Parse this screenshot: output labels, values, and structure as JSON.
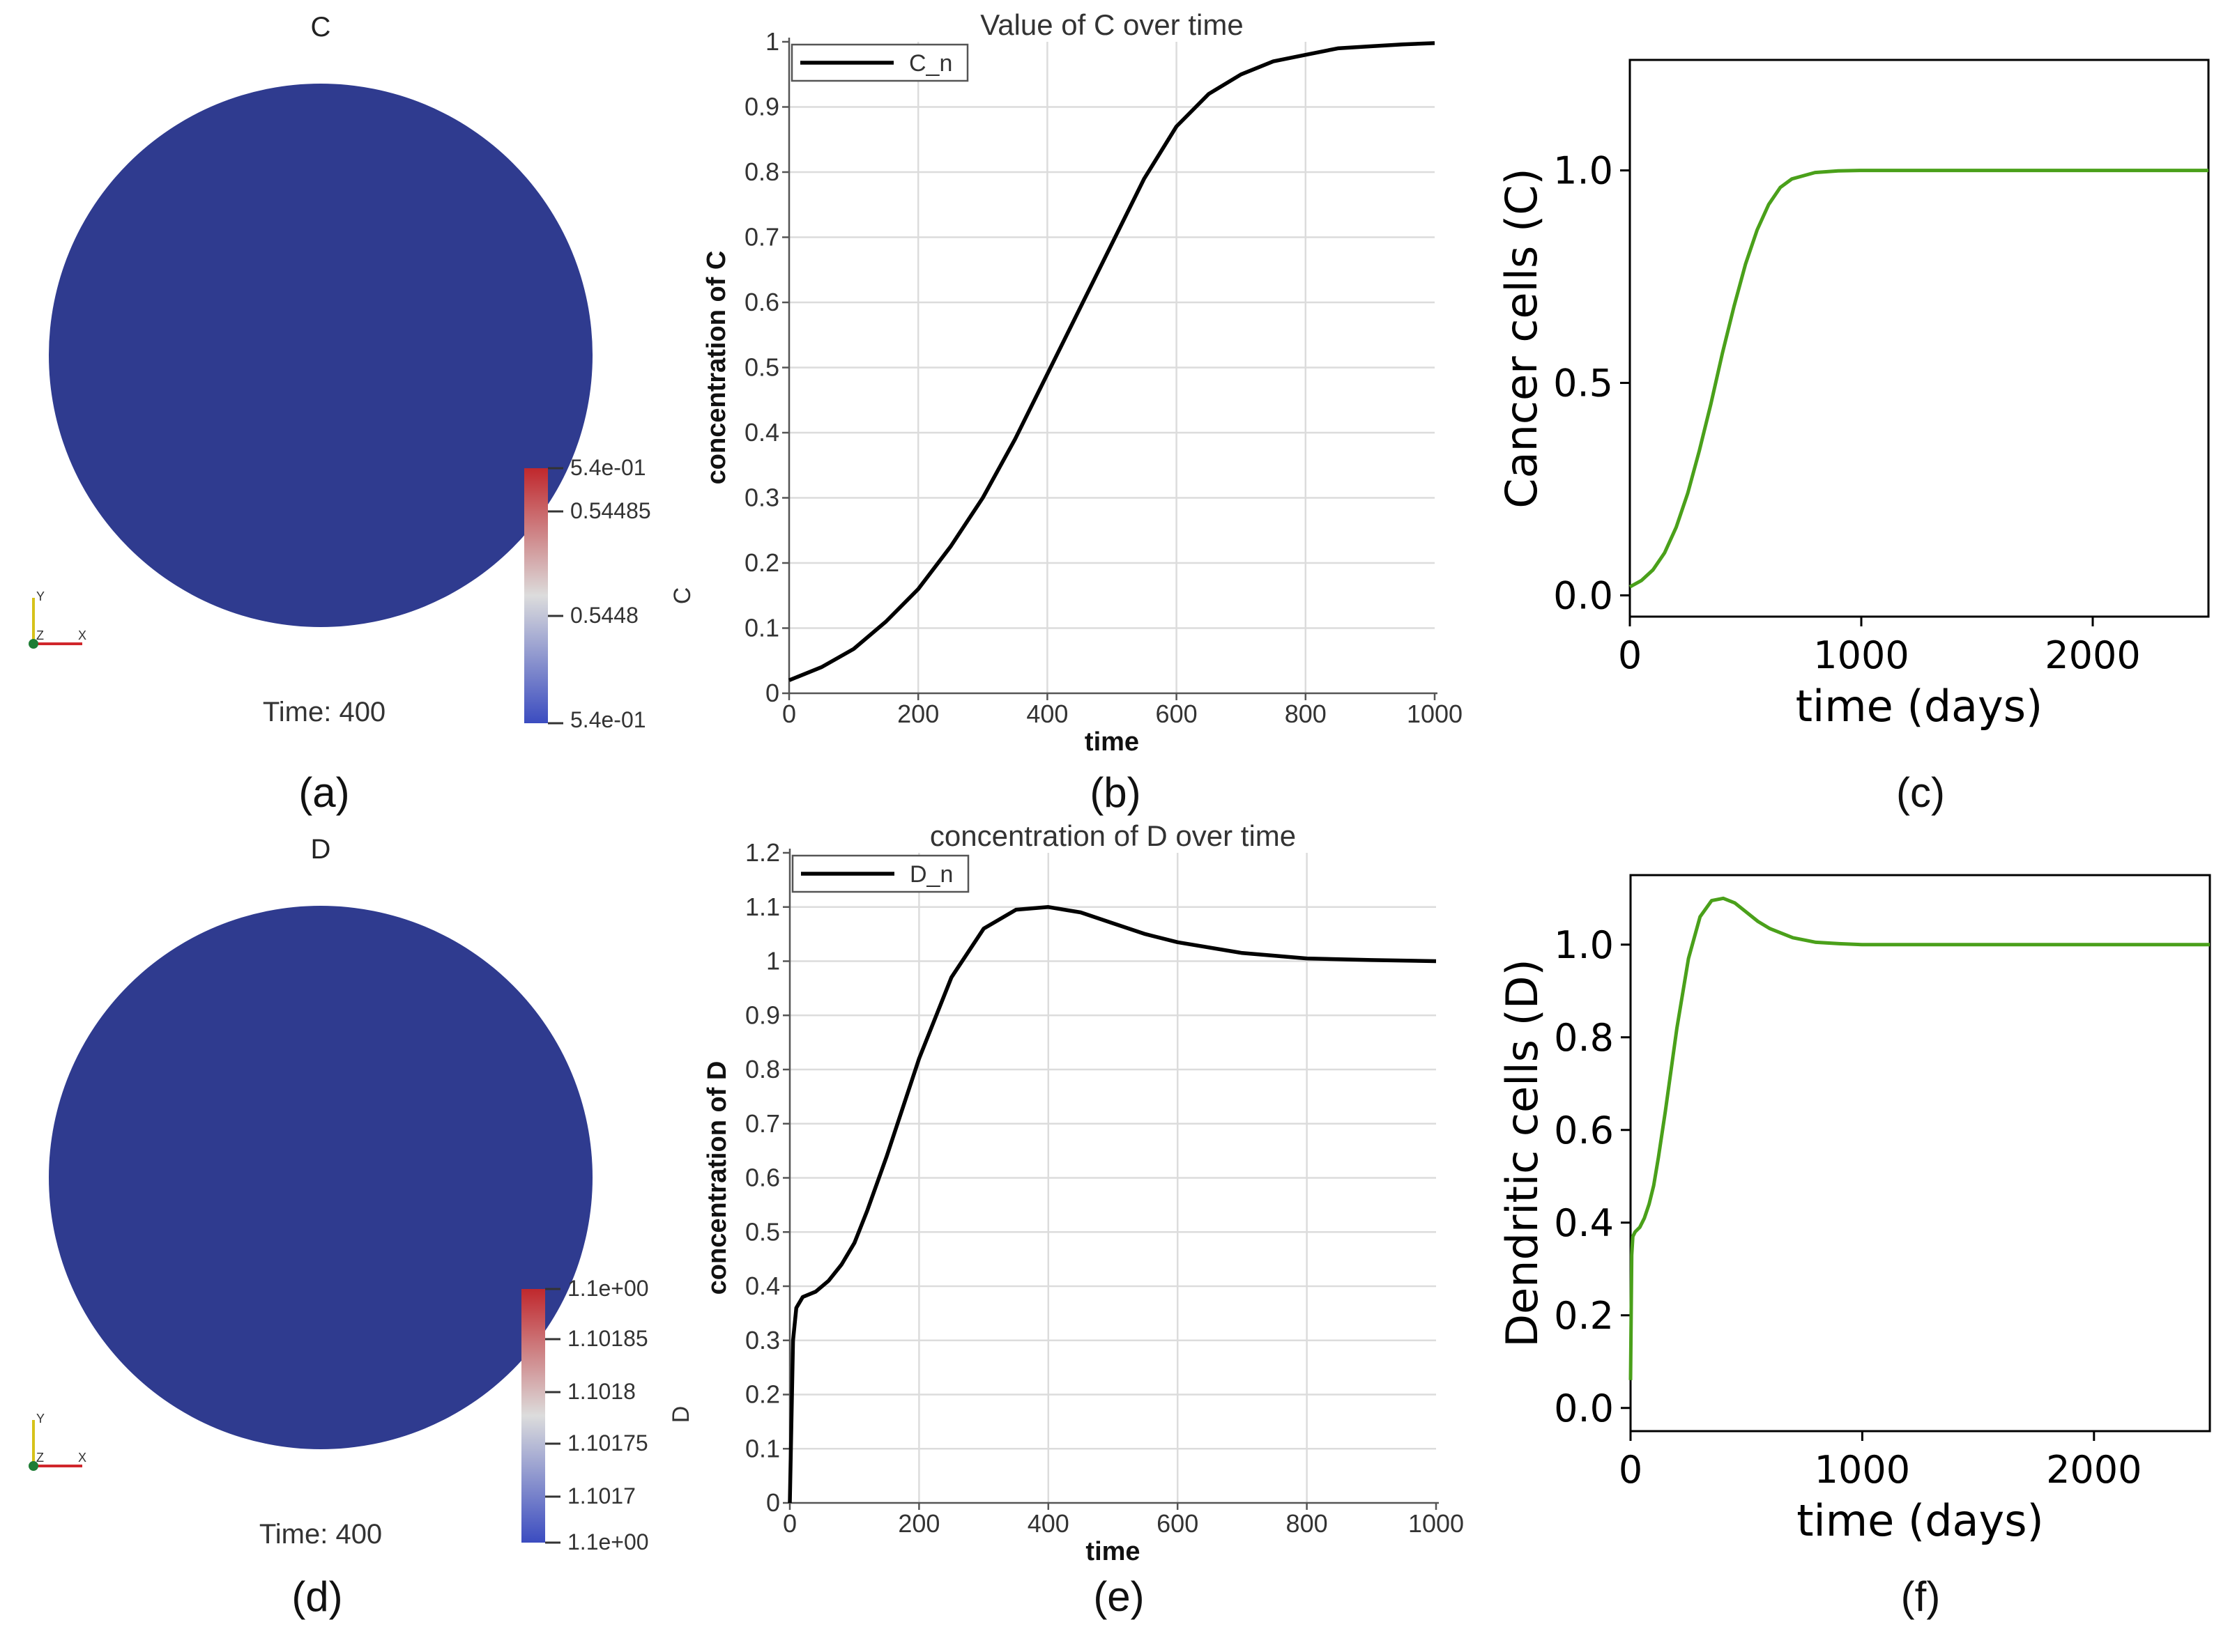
{
  "panels": {
    "a": {
      "label": "(a)",
      "title": "C",
      "time_text": "Time: 400",
      "cb_title": "C",
      "cb_ticks": [
        "5.4e-01",
        "0.54485",
        "0.5448",
        "5.4e-01"
      ],
      "disk_color": "#2f3b8f",
      "axes": {
        "x": "X",
        "y": "Y",
        "z": "Z"
      }
    },
    "b": {
      "label": "(b)"
    },
    "c": {
      "label": "(c)"
    },
    "d": {
      "label": "(d)",
      "title": "D",
      "time_text": "Time: 400",
      "cb_title": "D",
      "cb_ticks": [
        "1.1e+00",
        "1.10185",
        "1.1018",
        "1.10175",
        "1.1017",
        "1.1e+00"
      ],
      "disk_color": "#2f3b8f",
      "axes": {
        "x": "X",
        "y": "Y",
        "z": "Z"
      }
    },
    "e": {
      "label": "(e)"
    },
    "f": {
      "label": "(f)"
    }
  },
  "colors": {
    "black_line": "#000000",
    "green_line": "#4aa01a",
    "grid": "#dcdcdc",
    "cb_top": "#c0282d",
    "cb_mid": "#dcdcdc",
    "cb_bottom": "#3b4cc0"
  },
  "chart_data": [
    {
      "id": "b",
      "type": "line",
      "title": "Value of C over time",
      "xlabel": "time",
      "ylabel": "concentration of C",
      "xlim": [
        0,
        1000
      ],
      "ylim": [
        0,
        1
      ],
      "xticks": [
        0,
        200,
        400,
        600,
        800,
        1000
      ],
      "xtick_labels": [
        "0",
        "200",
        "400",
        "600",
        "800",
        "1000"
      ],
      "yticks": [
        0,
        0.1,
        0.2,
        0.3,
        0.4,
        0.5,
        0.6,
        0.7,
        0.8,
        0.9,
        1
      ],
      "ytick_labels": [
        "0",
        "0.1",
        "0.2",
        "0.3",
        "0.4",
        "0.5",
        "0.6",
        "0.7",
        "0.8",
        "0.9",
        "1"
      ],
      "grid": true,
      "legend": "top-left",
      "series": [
        {
          "name": "C_n",
          "x": [
            0,
            50,
            100,
            150,
            200,
            250,
            300,
            350,
            400,
            450,
            500,
            550,
            600,
            650,
            700,
            750,
            800,
            850,
            900,
            950,
            1000
          ],
          "y": [
            0.02,
            0.04,
            0.068,
            0.11,
            0.16,
            0.225,
            0.3,
            0.39,
            0.49,
            0.59,
            0.69,
            0.79,
            0.87,
            0.92,
            0.95,
            0.97,
            0.98,
            0.99,
            0.993,
            0.996,
            0.998
          ]
        }
      ]
    },
    {
      "id": "c",
      "type": "line",
      "title": "",
      "xlabel": "time (days)",
      "ylabel": "Cancer cells  (C)",
      "xlim": [
        0,
        2500
      ],
      "ylim": [
        -0.05,
        1.26
      ],
      "xticks": [
        0,
        1000,
        2000
      ],
      "xtick_labels": [
        "0",
        "1000",
        "2000"
      ],
      "yticks": [
        0,
        0.5,
        1
      ],
      "ytick_labels": [
        "0.0",
        "0.5",
        "1.0"
      ],
      "grid": false,
      "series": [
        {
          "name": "C",
          "x": [
            0,
            50,
            100,
            150,
            200,
            250,
            300,
            350,
            400,
            450,
            500,
            550,
            600,
            650,
            700,
            800,
            900,
            1000,
            1200,
            1500,
            2000,
            2500
          ],
          "y": [
            0.02,
            0.035,
            0.06,
            0.1,
            0.16,
            0.24,
            0.34,
            0.45,
            0.57,
            0.68,
            0.78,
            0.86,
            0.92,
            0.96,
            0.98,
            0.995,
            0.999,
            1.0,
            1.0,
            1.0,
            1.0,
            1.0
          ]
        }
      ]
    },
    {
      "id": "e",
      "type": "line",
      "title": "concentration of D over time",
      "xlabel": "time",
      "ylabel": "concentration of D",
      "xlim": [
        0,
        1000
      ],
      "ylim": [
        0,
        1.2
      ],
      "xticks": [
        0,
        200,
        400,
        600,
        800,
        1000
      ],
      "xtick_labels": [
        "0",
        "200",
        "400",
        "600",
        "800",
        "1000"
      ],
      "yticks": [
        0,
        0.1,
        0.2,
        0.3,
        0.4,
        0.5,
        0.6,
        0.7,
        0.8,
        0.9,
        1,
        1.1,
        1.2
      ],
      "ytick_labels": [
        "0",
        "0.1",
        "0.2",
        "0.3",
        "0.4",
        "0.5",
        "0.6",
        "0.7",
        "0.8",
        "0.9",
        "1",
        "1.1",
        "1.2"
      ],
      "grid": true,
      "legend": "top-left",
      "series": [
        {
          "name": "D_n",
          "x": [
            0,
            5,
            10,
            20,
            40,
            60,
            80,
            100,
            120,
            150,
            200,
            250,
            300,
            350,
            400,
            450,
            500,
            550,
            600,
            700,
            800,
            900,
            1000
          ],
          "y": [
            0,
            0.3,
            0.36,
            0.38,
            0.39,
            0.41,
            0.44,
            0.48,
            0.54,
            0.64,
            0.82,
            0.97,
            1.06,
            1.095,
            1.1,
            1.09,
            1.07,
            1.05,
            1.035,
            1.015,
            1.005,
            1.002,
            1.0
          ]
        }
      ]
    },
    {
      "id": "f",
      "type": "line",
      "title": "",
      "xlabel": "time (days)",
      "ylabel": "Dendritic cells  (D)",
      "xlim": [
        0,
        2500
      ],
      "ylim": [
        -0.05,
        1.15
      ],
      "xticks": [
        0,
        1000,
        2000
      ],
      "xtick_labels": [
        "0",
        "1000",
        "2000"
      ],
      "yticks": [
        0,
        0.2,
        0.4,
        0.6,
        0.8,
        1
      ],
      "ytick_labels": [
        "0.0",
        "0.2",
        "0.4",
        "0.6",
        "0.8",
        "1.0"
      ],
      "grid": false,
      "series": [
        {
          "name": "D",
          "x": [
            0,
            5,
            10,
            20,
            40,
            60,
            80,
            100,
            120,
            150,
            200,
            250,
            300,
            350,
            400,
            450,
            500,
            550,
            600,
            700,
            800,
            900,
            1000,
            1500,
            2000,
            2500
          ],
          "y": [
            0.06,
            0.33,
            0.37,
            0.38,
            0.39,
            0.41,
            0.44,
            0.48,
            0.54,
            0.64,
            0.82,
            0.97,
            1.06,
            1.095,
            1.1,
            1.09,
            1.07,
            1.05,
            1.035,
            1.015,
            1.005,
            1.002,
            1.0,
            1.0,
            1.0,
            1.0
          ]
        }
      ]
    }
  ]
}
